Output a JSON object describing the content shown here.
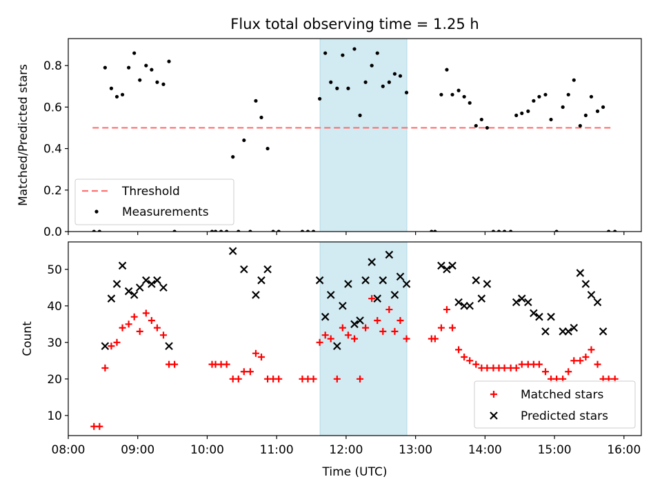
{
  "chart_data": [
    {
      "type": "scatter",
      "title": "Flux total observing time = 1.25 h",
      "xlabel": "",
      "ylabel": "Matched/Predicted stars",
      "ylim": [
        0,
        0.93
      ],
      "yticks": [
        "0.0",
        "0.2",
        "0.4",
        "0.6",
        "0.8"
      ],
      "ytick_values": [
        0,
        0.2,
        0.4,
        0.6,
        0.8
      ],
      "highlight_span": {
        "x": [
          11.625,
          12.875
        ],
        "color": "#add8e6"
      },
      "series": [
        {
          "name": "Threshold",
          "style": "dashed-line",
          "color": "#ff6f6f",
          "points": [
            [
              8.35,
              0.5
            ],
            [
              15.85,
              0.5
            ]
          ]
        },
        {
          "name": "Measurements",
          "style": "dot",
          "color": "#000000",
          "points": [
            [
              8.37,
              0
            ],
            [
              8.45,
              0
            ],
            [
              8.53,
              0.79
            ],
            [
              8.62,
              0.69
            ],
            [
              8.7,
              0.65
            ],
            [
              8.78,
              0.66
            ],
            [
              8.87,
              0.79
            ],
            [
              8.95,
              0.86
            ],
            [
              9.03,
              0.73
            ],
            [
              9.12,
              0.8
            ],
            [
              9.2,
              0.78
            ],
            [
              9.28,
              0.72
            ],
            [
              9.37,
              0.71
            ],
            [
              9.45,
              0.82
            ],
            [
              9.53,
              0
            ],
            [
              10.07,
              0
            ],
            [
              10.12,
              0
            ],
            [
              10.2,
              0
            ],
            [
              10.28,
              0
            ],
            [
              10.37,
              0.36
            ],
            [
              10.45,
              0
            ],
            [
              10.53,
              0.44
            ],
            [
              10.62,
              0
            ],
            [
              10.7,
              0.63
            ],
            [
              10.78,
              0.55
            ],
            [
              10.87,
              0.4
            ],
            [
              10.95,
              0
            ],
            [
              11.03,
              0
            ],
            [
              11.37,
              0
            ],
            [
              11.45,
              0
            ],
            [
              11.53,
              0
            ],
            [
              11.62,
              0.64
            ],
            [
              11.7,
              0.86
            ],
            [
              11.78,
              0.72
            ],
            [
              11.87,
              0.69
            ],
            [
              11.95,
              0.85
            ],
            [
              12.03,
              0.69
            ],
            [
              12.12,
              0.88
            ],
            [
              12.2,
              0.56
            ],
            [
              12.28,
              0.72
            ],
            [
              12.37,
              0.8
            ],
            [
              12.45,
              0.86
            ],
            [
              12.53,
              0.7
            ],
            [
              12.62,
              0.72
            ],
            [
              12.7,
              0.76
            ],
            [
              12.78,
              0.75
            ],
            [
              12.87,
              0.67
            ],
            [
              13.23,
              0
            ],
            [
              13.28,
              0
            ],
            [
              13.37,
              0.66
            ],
            [
              13.45,
              0.78
            ],
            [
              13.53,
              0.66
            ],
            [
              13.62,
              0.68
            ],
            [
              13.7,
              0.65
            ],
            [
              13.78,
              0.62
            ],
            [
              13.87,
              0.51
            ],
            [
              13.95,
              0.54
            ],
            [
              14.03,
              0.5
            ],
            [
              14.12,
              0
            ],
            [
              14.2,
              0
            ],
            [
              14.28,
              0
            ],
            [
              14.37,
              0
            ],
            [
              14.45,
              0.56
            ],
            [
              14.53,
              0.57
            ],
            [
              14.62,
              0.58
            ],
            [
              14.7,
              0.63
            ],
            [
              14.78,
              0.65
            ],
            [
              14.87,
              0.66
            ],
            [
              14.95,
              0.54
            ],
            [
              15.03,
              0
            ],
            [
              15.12,
              0.6
            ],
            [
              15.2,
              0.66
            ],
            [
              15.28,
              0.73
            ],
            [
              15.37,
              0.51
            ],
            [
              15.45,
              0.56
            ],
            [
              15.53,
              0.65
            ],
            [
              15.62,
              0.58
            ],
            [
              15.7,
              0.6
            ],
            [
              15.78,
              0
            ],
            [
              15.87,
              0
            ]
          ]
        }
      ],
      "legend": "lower-left"
    },
    {
      "type": "scatter",
      "xlabel": "Time (UTC)",
      "ylabel": "Count",
      "xlim": [
        8.0,
        16.25
      ],
      "ylim": [
        4.5,
        57.5
      ],
      "xticks": [
        "08:00",
        "09:00",
        "10:00",
        "11:00",
        "12:00",
        "13:00",
        "14:00",
        "15:00",
        "16:00"
      ],
      "xtick_values": [
        8,
        9,
        10,
        11,
        12,
        13,
        14,
        15,
        16
      ],
      "yticks": [
        "10",
        "20",
        "30",
        "40",
        "50"
      ],
      "ytick_values": [
        10,
        20,
        30,
        40,
        50
      ],
      "highlight_span": {
        "x": [
          11.625,
          12.875
        ],
        "color": "#add8e6"
      },
      "series": [
        {
          "name": "Matched stars",
          "style": "plus",
          "color": "#ff0000",
          "points": [
            [
              8.37,
              7
            ],
            [
              8.45,
              7
            ],
            [
              8.53,
              23
            ],
            [
              8.62,
              29
            ],
            [
              8.7,
              30
            ],
            [
              8.78,
              34
            ],
            [
              8.87,
              35
            ],
            [
              8.95,
              37
            ],
            [
              9.03,
              33
            ],
            [
              9.12,
              38
            ],
            [
              9.2,
              36
            ],
            [
              9.28,
              34
            ],
            [
              9.37,
              32
            ],
            [
              9.45,
              24
            ],
            [
              9.53,
              24
            ],
            [
              10.07,
              24
            ],
            [
              10.12,
              24
            ],
            [
              10.2,
              24
            ],
            [
              10.28,
              24
            ],
            [
              10.37,
              20
            ],
            [
              10.45,
              20
            ],
            [
              10.53,
              22
            ],
            [
              10.62,
              22
            ],
            [
              10.7,
              27
            ],
            [
              10.78,
              26
            ],
            [
              10.87,
              20
            ],
            [
              10.95,
              20
            ],
            [
              11.03,
              20
            ],
            [
              11.37,
              20
            ],
            [
              11.45,
              20
            ],
            [
              11.53,
              20
            ],
            [
              11.62,
              30
            ],
            [
              11.7,
              32
            ],
            [
              11.78,
              31
            ],
            [
              11.87,
              20
            ],
            [
              11.95,
              34
            ],
            [
              12.03,
              32
            ],
            [
              12.12,
              31
            ],
            [
              12.2,
              20
            ],
            [
              12.28,
              34
            ],
            [
              12.37,
              42
            ],
            [
              12.45,
              36
            ],
            [
              12.53,
              33
            ],
            [
              12.62,
              39
            ],
            [
              12.7,
              33
            ],
            [
              12.78,
              36
            ],
            [
              12.87,
              31
            ],
            [
              13.23,
              31
            ],
            [
              13.28,
              31
            ],
            [
              13.37,
              34
            ],
            [
              13.45,
              39
            ],
            [
              13.53,
              34
            ],
            [
              13.62,
              28
            ],
            [
              13.7,
              26
            ],
            [
              13.78,
              25
            ],
            [
              13.87,
              24
            ],
            [
              13.95,
              23
            ],
            [
              14.03,
              23
            ],
            [
              14.12,
              23
            ],
            [
              14.2,
              23
            ],
            [
              14.28,
              23
            ],
            [
              14.37,
              23
            ],
            [
              14.45,
              23
            ],
            [
              14.53,
              24
            ],
            [
              14.62,
              24
            ],
            [
              14.7,
              24
            ],
            [
              14.78,
              24
            ],
            [
              14.87,
              22
            ],
            [
              14.95,
              20
            ],
            [
              15.03,
              20
            ],
            [
              15.12,
              20
            ],
            [
              15.2,
              22
            ],
            [
              15.28,
              25
            ],
            [
              15.37,
              25
            ],
            [
              15.45,
              26
            ],
            [
              15.53,
              28
            ],
            [
              15.62,
              24
            ],
            [
              15.7,
              20
            ],
            [
              15.78,
              20
            ],
            [
              15.87,
              20
            ]
          ]
        },
        {
          "name": "Predicted stars",
          "style": "x",
          "color": "#000000",
          "points": [
            [
              8.53,
              29
            ],
            [
              8.62,
              42
            ],
            [
              8.7,
              46
            ],
            [
              8.78,
              51
            ],
            [
              8.87,
              44
            ],
            [
              8.95,
              43
            ],
            [
              9.03,
              45
            ],
            [
              9.12,
              47
            ],
            [
              9.2,
              46
            ],
            [
              9.28,
              47
            ],
            [
              9.37,
              45
            ],
            [
              9.45,
              29
            ],
            [
              10.37,
              55
            ],
            [
              10.53,
              50
            ],
            [
              10.7,
              43
            ],
            [
              10.78,
              47
            ],
            [
              10.87,
              50
            ],
            [
              11.62,
              47
            ],
            [
              11.7,
              37
            ],
            [
              11.78,
              43
            ],
            [
              11.87,
              29
            ],
            [
              11.95,
              40
            ],
            [
              12.03,
              46
            ],
            [
              12.12,
              35
            ],
            [
              12.2,
              36
            ],
            [
              12.28,
              47
            ],
            [
              12.37,
              52
            ],
            [
              12.45,
              42
            ],
            [
              12.53,
              47
            ],
            [
              12.62,
              54
            ],
            [
              12.7,
              43
            ],
            [
              12.78,
              48
            ],
            [
              12.87,
              46
            ],
            [
              13.37,
              51
            ],
            [
              13.45,
              50
            ],
            [
              13.53,
              51
            ],
            [
              13.62,
              41
            ],
            [
              13.7,
              40
            ],
            [
              13.78,
              40
            ],
            [
              13.87,
              47
            ],
            [
              13.95,
              42
            ],
            [
              14.03,
              46
            ],
            [
              14.45,
              41
            ],
            [
              14.53,
              42
            ],
            [
              14.62,
              41
            ],
            [
              14.7,
              38
            ],
            [
              14.78,
              37
            ],
            [
              14.87,
              33
            ],
            [
              14.95,
              37
            ],
            [
              15.12,
              33
            ],
            [
              15.2,
              33
            ],
            [
              15.28,
              34
            ],
            [
              15.37,
              49
            ],
            [
              15.45,
              46
            ],
            [
              15.53,
              43
            ],
            [
              15.62,
              41
            ],
            [
              15.7,
              33
            ]
          ]
        }
      ],
      "legend": "lower-right"
    }
  ]
}
